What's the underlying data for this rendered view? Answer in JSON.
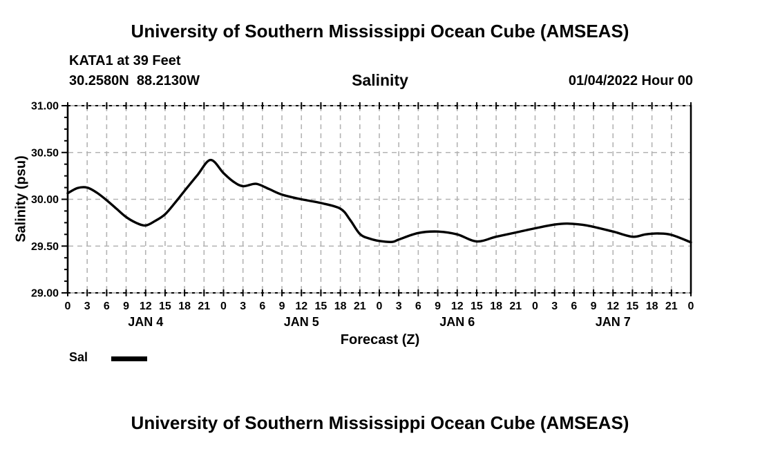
{
  "page": {
    "top_title": "University of Southern Mississippi Ocean Cube (AMSEAS)",
    "bottom_title": "University of Southern Mississippi Ocean Cube (AMSEAS)"
  },
  "header": {
    "station": "KATA1 at 39 Feet",
    "coordinates": "30.2580N  88.2130W",
    "plot_title": "Salinity",
    "run_date": "01/04/2022 Hour 00"
  },
  "legend": {
    "label": "Sal",
    "line_color": "#000000"
  },
  "colors": {
    "background": "#ffffff",
    "grid": "#b3b3b3",
    "frame_horizontal": "#9a9a9a",
    "axis": "#000000",
    "line": "#000000",
    "text": "#000000"
  },
  "chart_data": {
    "type": "line",
    "title": "Salinity",
    "xlabel": "Forecast (Z)",
    "ylabel": "Salinity (psu)",
    "ylim": [
      29.0,
      31.0
    ],
    "xlim_hours": [
      0,
      96
    ],
    "grid": true,
    "legend_position": "bottom-left",
    "y_ticks": [
      {
        "value": 29.0,
        "label": "29.00"
      },
      {
        "value": 29.5,
        "label": "29.50"
      },
      {
        "value": 30.0,
        "label": "30.00"
      },
      {
        "value": 30.5,
        "label": "30.50"
      },
      {
        "value": 31.0,
        "label": "31.00"
      }
    ],
    "y_minor_step": 0.125,
    "x_tick_step_hours": 3,
    "x_tick_labels": [
      "0",
      "3",
      "6",
      "9",
      "12",
      "15",
      "18",
      "21",
      "0",
      "3",
      "6",
      "9",
      "12",
      "15",
      "18",
      "21",
      "0",
      "3",
      "6",
      "9",
      "12",
      "15",
      "18",
      "21",
      "0",
      "3",
      "6",
      "9",
      "12",
      "15",
      "18",
      "21",
      "0"
    ],
    "day_labels": [
      {
        "label": "JAN 4",
        "hour": 12
      },
      {
        "label": "JAN 5",
        "hour": 36
      },
      {
        "label": "JAN 6",
        "hour": 60
      },
      {
        "label": "JAN 7",
        "hour": 84
      }
    ],
    "series": [
      {
        "name": "Sal",
        "color": "#000000",
        "points": [
          [
            0,
            30.065
          ],
          [
            1.5,
            30.12
          ],
          [
            3,
            30.125
          ],
          [
            4.5,
            30.07
          ],
          [
            6,
            29.99
          ],
          [
            7.5,
            29.9
          ],
          [
            9,
            29.81
          ],
          [
            10.5,
            29.75
          ],
          [
            12,
            29.72
          ],
          [
            13.5,
            29.77
          ],
          [
            15,
            29.84
          ],
          [
            16.5,
            29.96
          ],
          [
            18,
            30.09
          ],
          [
            20,
            30.26
          ],
          [
            22,
            30.42
          ],
          [
            24,
            30.28
          ],
          [
            25.5,
            30.19
          ],
          [
            27,
            30.14
          ],
          [
            29,
            30.165
          ],
          [
            31,
            30.11
          ],
          [
            33,
            30.05
          ],
          [
            36,
            30.0
          ],
          [
            39,
            29.96
          ],
          [
            42,
            29.9
          ],
          [
            43.5,
            29.78
          ],
          [
            45,
            29.63
          ],
          [
            46.5,
            29.58
          ],
          [
            48,
            29.555
          ],
          [
            50,
            29.545
          ],
          [
            51,
            29.57
          ],
          [
            54,
            29.64
          ],
          [
            57,
            29.655
          ],
          [
            60,
            29.625
          ],
          [
            63,
            29.55
          ],
          [
            66,
            29.6
          ],
          [
            69,
            29.645
          ],
          [
            72,
            29.69
          ],
          [
            75,
            29.73
          ],
          [
            77,
            29.74
          ],
          [
            80,
            29.72
          ],
          [
            84,
            29.655
          ],
          [
            87,
            29.6
          ],
          [
            89,
            29.625
          ],
          [
            91,
            29.635
          ],
          [
            93,
            29.62
          ],
          [
            96,
            29.54
          ]
        ]
      }
    ]
  }
}
